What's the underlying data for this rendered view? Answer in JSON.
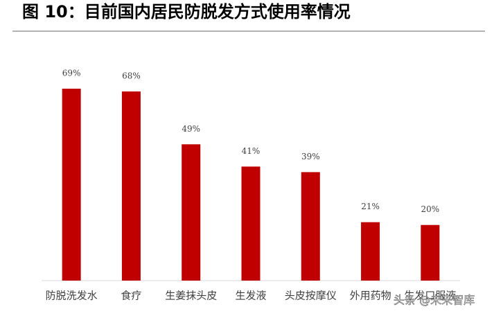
{
  "chart_data": {
    "type": "bar",
    "title": "图 10：目前国内居民防脱发方式使用率情况",
    "categories": [
      "防脱洗发水",
      "食疗",
      "生姜抹头皮",
      "生发液",
      "头皮按摩仪",
      "外用药物",
      "生发口服液"
    ],
    "values": [
      69,
      68,
      49,
      41,
      39,
      21,
      20
    ],
    "value_labels": [
      "69%",
      "68%",
      "49%",
      "41%",
      "39%",
      "21%",
      "20%"
    ],
    "color": "#c00000",
    "ylim": [
      0,
      70
    ],
    "watermark": "头条 @未来智库"
  }
}
